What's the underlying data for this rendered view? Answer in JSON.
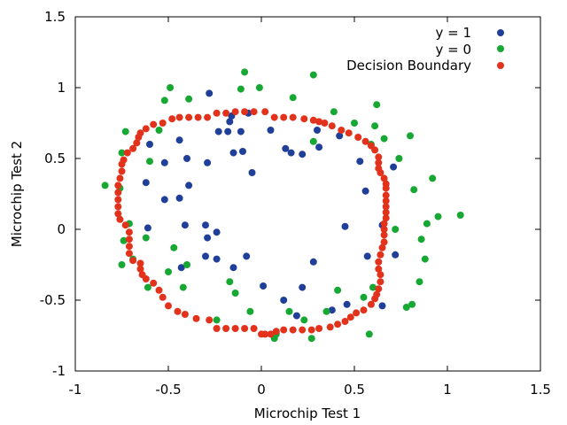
{
  "chart_data": {
    "type": "scatter",
    "xlabel": "Microchip Test 1",
    "ylabel": "Microchip Test 2",
    "xlim": [
      -1,
      1.5
    ],
    "ylim": [
      -1,
      1.5
    ],
    "xticks": [
      -1,
      -0.5,
      0,
      0.5,
      1,
      1.5
    ],
    "yticks": [
      -1,
      -0.5,
      0,
      0.5,
      1,
      1.5
    ],
    "xtick_labels": [
      "-1",
      "-0.5",
      "0",
      "0.5",
      "1",
      "1.5"
    ],
    "ytick_labels": [
      "-1",
      "-0.5",
      "0",
      "0.5",
      "1",
      "1.5"
    ],
    "grid": false,
    "legend_position": "top-right",
    "series": [
      {
        "name": "y = 1",
        "color": "#1f3f99",
        "points": [
          [
            -0.28,
            0.96
          ],
          [
            -0.23,
            0.69
          ],
          [
            -0.18,
            0.69
          ],
          [
            -0.17,
            0.76
          ],
          [
            -0.16,
            0.8
          ],
          [
            -0.11,
            0.69
          ],
          [
            -0.07,
            0.82
          ],
          [
            -0.44,
            0.63
          ],
          [
            -0.6,
            0.6
          ],
          [
            -0.52,
            0.47
          ],
          [
            -0.4,
            0.5
          ],
          [
            -0.29,
            0.47
          ],
          [
            -0.15,
            0.54
          ],
          [
            -0.1,
            0.55
          ],
          [
            -0.05,
            0.4
          ],
          [
            0.05,
            0.7
          ],
          [
            0.13,
            0.57
          ],
          [
            0.16,
            0.54
          ],
          [
            0.22,
            0.53
          ],
          [
            0.3,
            0.7
          ],
          [
            0.31,
            0.58
          ],
          [
            0.42,
            0.66
          ],
          [
            0.53,
            0.48
          ],
          [
            0.56,
            0.27
          ],
          [
            0.71,
            0.44
          ],
          [
            -0.62,
            0.33
          ],
          [
            -0.52,
            0.21
          ],
          [
            -0.44,
            0.22
          ],
          [
            -0.39,
            0.31
          ],
          [
            -0.61,
            0.01
          ],
          [
            -0.41,
            0.03
          ],
          [
            -0.3,
            0.03
          ],
          [
            -0.29,
            -0.06
          ],
          [
            -0.24,
            -0.02
          ],
          [
            -0.3,
            -0.19
          ],
          [
            -0.24,
            -0.21
          ],
          [
            -0.15,
            -0.27
          ],
          [
            -0.08,
            -0.19
          ],
          [
            -0.43,
            -0.27
          ],
          [
            0.01,
            -0.4
          ],
          [
            0.12,
            -0.5
          ],
          [
            0.22,
            -0.41
          ],
          [
            0.28,
            -0.23
          ],
          [
            0.19,
            -0.61
          ],
          [
            0.38,
            -0.57
          ],
          [
            0.46,
            -0.53
          ],
          [
            0.57,
            -0.19
          ],
          [
            0.65,
            -0.54
          ],
          [
            0.65,
            0.03
          ],
          [
            0.72,
            -0.18
          ],
          [
            0.45,
            0.02
          ]
        ]
      },
      {
        "name": "y = 0",
        "color": "#16a832",
        "points": [
          [
            -0.49,
            1.0
          ],
          [
            -0.52,
            0.91
          ],
          [
            -0.39,
            0.92
          ],
          [
            -0.11,
            0.99
          ],
          [
            -0.09,
            1.11
          ],
          [
            -0.01,
            1.0
          ],
          [
            0.17,
            0.93
          ],
          [
            0.28,
            1.09
          ],
          [
            0.39,
            0.83
          ],
          [
            0.5,
            0.75
          ],
          [
            0.61,
            0.73
          ],
          [
            0.62,
            0.88
          ],
          [
            0.66,
            0.64
          ],
          [
            0.8,
            0.66
          ],
          [
            0.74,
            0.5
          ],
          [
            0.59,
            0.6
          ],
          [
            0.28,
            0.62
          ],
          [
            -0.55,
            0.7
          ],
          [
            -0.73,
            0.69
          ],
          [
            -0.75,
            0.54
          ],
          [
            -0.6,
            0.48
          ],
          [
            -0.84,
            0.31
          ],
          [
            -0.76,
            0.29
          ],
          [
            -0.71,
            0.04
          ],
          [
            -0.74,
            -0.08
          ],
          [
            -0.62,
            -0.06
          ],
          [
            -0.47,
            -0.13
          ],
          [
            -0.4,
            -0.25
          ],
          [
            -0.5,
            -0.3
          ],
          [
            -0.69,
            -0.21
          ],
          [
            -0.75,
            -0.25
          ],
          [
            -0.61,
            -0.41
          ],
          [
            -0.42,
            -0.41
          ],
          [
            -0.17,
            -0.37
          ],
          [
            -0.14,
            -0.45
          ],
          [
            -0.06,
            -0.58
          ],
          [
            0.08,
            -0.74
          ],
          [
            0.07,
            -0.77
          ],
          [
            0.15,
            -0.58
          ],
          [
            0.27,
            -0.77
          ],
          [
            0.23,
            -0.64
          ],
          [
            0.35,
            -0.58
          ],
          [
            0.41,
            -0.43
          ],
          [
            0.55,
            -0.48
          ],
          [
            0.58,
            -0.74
          ],
          [
            0.78,
            -0.55
          ],
          [
            0.81,
            -0.53
          ],
          [
            0.85,
            -0.37
          ],
          [
            0.88,
            -0.21
          ],
          [
            0.82,
            0.28
          ],
          [
            0.92,
            0.36
          ],
          [
            0.95,
            0.09
          ],
          [
            1.07,
            0.1
          ],
          [
            0.89,
            0.04
          ],
          [
            0.86,
            -0.07
          ],
          [
            0.72,
            0.0
          ],
          [
            -0.24,
            -0.64
          ],
          [
            0.6,
            -0.41
          ]
        ]
      }
    ],
    "boundary": {
      "name": "Decision Boundary",
      "color": "#e3321b",
      "points": [
        [
          0.0,
          -0.74
        ],
        [
          0.02,
          -0.74
        ],
        [
          0.05,
          -0.74
        ],
        [
          0.08,
          -0.72
        ],
        [
          0.12,
          -0.71
        ],
        [
          0.17,
          -0.71
        ],
        [
          0.22,
          -0.71
        ],
        [
          0.27,
          -0.71
        ],
        [
          0.31,
          -0.7
        ],
        [
          0.37,
          -0.69
        ],
        [
          0.41,
          -0.67
        ],
        [
          0.45,
          -0.65
        ],
        [
          0.48,
          -0.62
        ],
        [
          0.51,
          -0.59
        ],
        [
          0.55,
          -0.57
        ],
        [
          0.59,
          -0.53
        ],
        [
          0.61,
          -0.49
        ],
        [
          0.62,
          -0.46
        ],
        [
          0.63,
          -0.42
        ],
        [
          0.64,
          -0.37
        ],
        [
          0.64,
          -0.32
        ],
        [
          0.63,
          -0.28
        ],
        [
          0.63,
          -0.23
        ],
        [
          0.64,
          -0.18
        ],
        [
          0.65,
          -0.13
        ],
        [
          0.66,
          -0.09
        ],
        [
          0.66,
          -0.04
        ],
        [
          0.66,
          0.0
        ],
        [
          0.66,
          0.04
        ],
        [
          0.67,
          0.08
        ],
        [
          0.67,
          0.12
        ],
        [
          0.67,
          0.16
        ],
        [
          0.67,
          0.2
        ],
        [
          0.67,
          0.24
        ],
        [
          0.67,
          0.29
        ],
        [
          0.67,
          0.32
        ],
        [
          0.66,
          0.36
        ],
        [
          0.64,
          0.4
        ],
        [
          0.63,
          0.43
        ],
        [
          0.63,
          0.47
        ],
        [
          0.63,
          0.51
        ],
        [
          0.61,
          0.56
        ],
        [
          0.59,
          0.59
        ],
        [
          0.56,
          0.62
        ],
        [
          0.52,
          0.65
        ],
        [
          0.47,
          0.68
        ],
        [
          0.43,
          0.7
        ],
        [
          0.38,
          0.73
        ],
        [
          0.34,
          0.75
        ],
        [
          0.31,
          0.76
        ],
        [
          0.28,
          0.77
        ],
        [
          0.23,
          0.78
        ],
        [
          0.17,
          0.79
        ],
        [
          0.12,
          0.79
        ],
        [
          0.07,
          0.79
        ],
        [
          0.02,
          0.83
        ],
        [
          -0.04,
          0.83
        ],
        [
          -0.09,
          0.83
        ],
        [
          -0.14,
          0.83
        ],
        [
          -0.19,
          0.82
        ],
        [
          -0.24,
          0.82
        ],
        [
          -0.29,
          0.79
        ],
        [
          -0.34,
          0.79
        ],
        [
          -0.39,
          0.79
        ],
        [
          -0.44,
          0.79
        ],
        [
          -0.48,
          0.78
        ],
        [
          -0.53,
          0.75
        ],
        [
          -0.58,
          0.74
        ],
        [
          -0.62,
          0.71
        ],
        [
          -0.65,
          0.68
        ],
        [
          -0.66,
          0.65
        ],
        [
          -0.67,
          0.61
        ],
        [
          -0.69,
          0.57
        ],
        [
          -0.72,
          0.54
        ],
        [
          -0.74,
          0.49
        ],
        [
          -0.75,
          0.46
        ],
        [
          -0.75,
          0.41
        ],
        [
          -0.76,
          0.36
        ],
        [
          -0.77,
          0.31
        ],
        [
          -0.77,
          0.26
        ],
        [
          -0.77,
          0.21
        ],
        [
          -0.77,
          0.16
        ],
        [
          -0.77,
          0.11
        ],
        [
          -0.76,
          0.07
        ],
        [
          -0.73,
          0.03
        ],
        [
          -0.71,
          -0.02
        ],
        [
          -0.71,
          -0.07
        ],
        [
          -0.71,
          -0.12
        ],
        [
          -0.71,
          -0.17
        ],
        [
          -0.69,
          -0.22
        ],
        [
          -0.65,
          -0.24
        ],
        [
          -0.65,
          -0.28
        ],
        [
          -0.64,
          -0.32
        ],
        [
          -0.62,
          -0.35
        ],
        [
          -0.58,
          -0.38
        ],
        [
          -0.55,
          -0.43
        ],
        [
          -0.53,
          -0.48
        ],
        [
          -0.5,
          -0.54
        ],
        [
          -0.45,
          -0.58
        ],
        [
          -0.41,
          -0.6
        ],
        [
          -0.35,
          -0.63
        ],
        [
          -0.28,
          -0.64
        ],
        [
          -0.24,
          -0.7
        ],
        [
          -0.19,
          -0.7
        ],
        [
          -0.14,
          -0.7
        ],
        [
          -0.09,
          -0.7
        ],
        [
          -0.04,
          -0.7
        ]
      ]
    }
  }
}
